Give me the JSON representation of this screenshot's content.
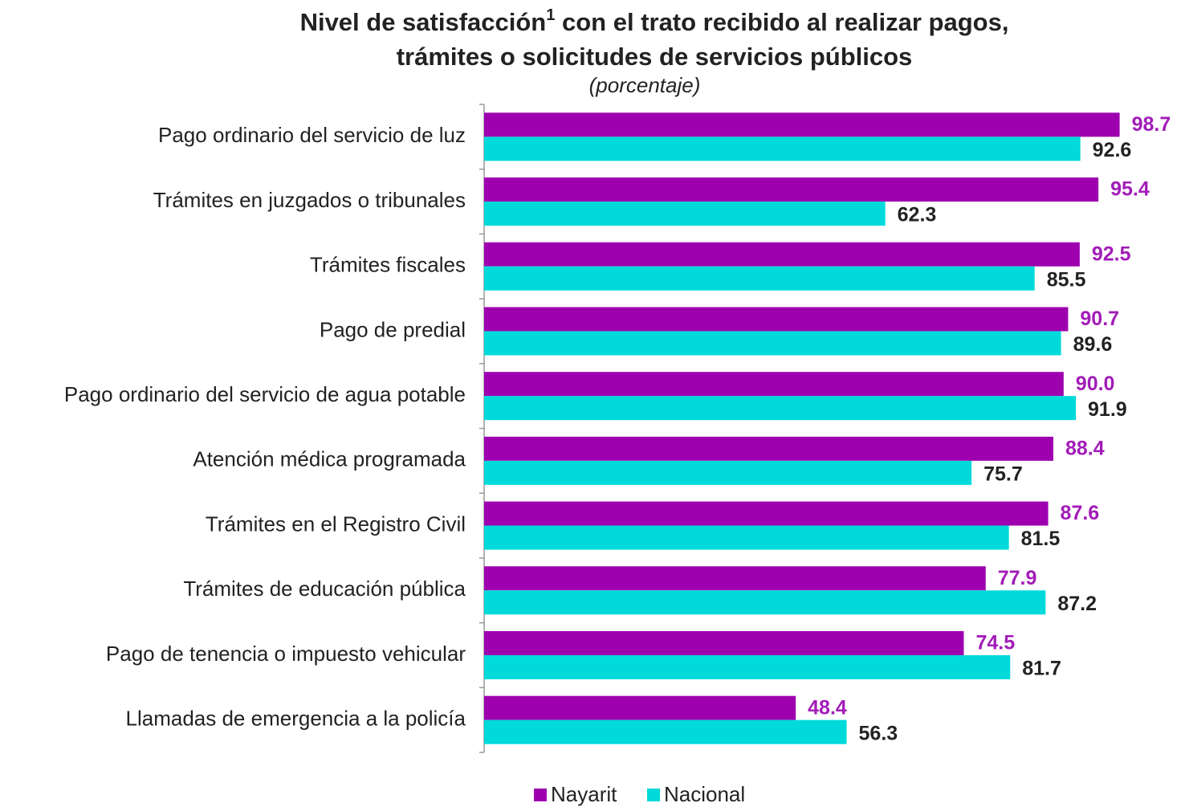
{
  "chart_data": {
    "type": "barh",
    "title": {
      "line1_start": "Nivel de satisfacción",
      "footnote_mark": "1",
      "line1_end": " con el trato recibido al realizar pagos,",
      "line2": "trámites o solicitudes de servicios públicos"
    },
    "subtitle": "(porcentaje)",
    "categories": [
      "Pago ordinario del servicio de luz",
      "Trámites en juzgados o tribunales",
      "Trámites fiscales",
      "Pago de predial",
      "Pago ordinario del servicio de agua potable",
      "Atención médica programada",
      "Trámites en el Registro Civil",
      "Trámites de educación pública",
      "Pago de tenencia o impuesto vehicular",
      "Llamadas de emergencia a la policía"
    ],
    "series": [
      {
        "name": "Nayarit",
        "color": "#9e00b0",
        "label_color": "#a21cb8",
        "values": [
          98.7,
          95.4,
          92.5,
          90.7,
          90.0,
          88.4,
          87.6,
          77.9,
          74.5,
          48.4
        ],
        "value_labels": [
          "98.7",
          "95.4",
          "92.5",
          "90.7",
          "90.0",
          "88.4",
          "87.6",
          "77.9",
          "74.5",
          "48.4"
        ]
      },
      {
        "name": "Nacional",
        "color": "#00dada",
        "label_color": "#222222",
        "values": [
          92.6,
          62.3,
          85.5,
          89.6,
          91.9,
          75.7,
          81.5,
          87.2,
          81.7,
          56.3
        ],
        "value_labels": [
          "92.6",
          "62.3",
          "85.5",
          "89.6",
          "91.9",
          "75.7",
          "81.5",
          "87.2",
          "81.7",
          "56.3"
        ]
      }
    ],
    "xlim": [
      0,
      100
    ],
    "legend": "bottom"
  }
}
